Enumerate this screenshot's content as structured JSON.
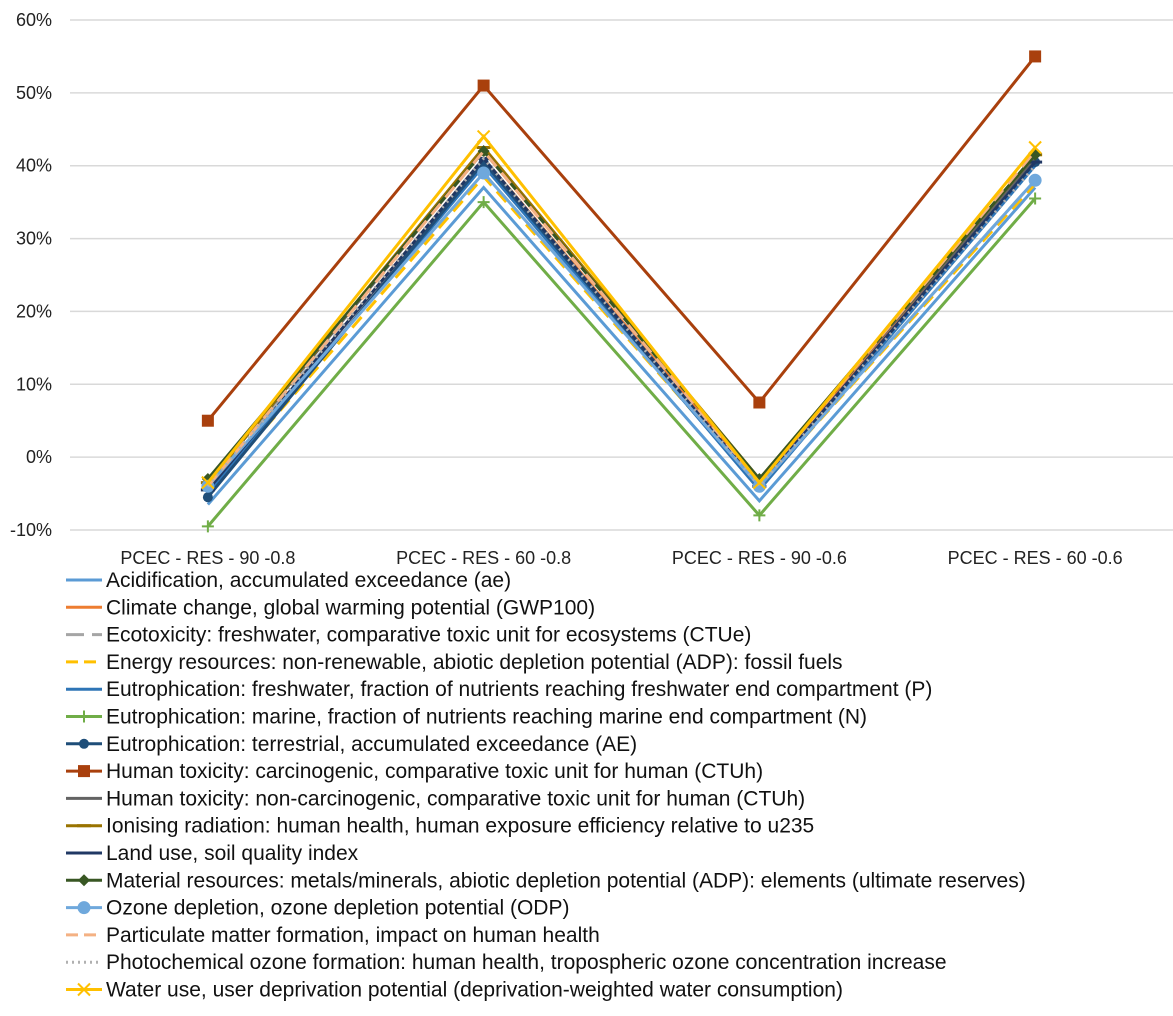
{
  "chart_data": {
    "type": "line",
    "title": "",
    "xlabel": "",
    "ylabel": "",
    "ylim": [
      -10,
      60
    ],
    "yticks": [
      -10,
      0,
      10,
      20,
      30,
      40,
      50,
      60
    ],
    "ytick_labels": [
      "-10%",
      "0%",
      "10%",
      "20%",
      "30%",
      "40%",
      "50%",
      "60%"
    ],
    "grid": "horizontal",
    "legend_position": "bottom",
    "categories": [
      "PCEC - RES - 90 -0.8",
      "PCEC - RES - 60 -0.8",
      "PCEC - RES - 90 -0.6",
      "PCEC - RES - 60 -0.6"
    ],
    "series": [
      {
        "name": "Acidification, accumulated exceedance (ae)",
        "color": "#5B9BD5",
        "dash": "solid",
        "marker": "none",
        "values": [
          -6.5,
          37,
          -6,
          37
        ]
      },
      {
        "name": "Climate change, global warming potential (GWP100)",
        "color": "#ED7D31",
        "dash": "solid",
        "marker": "none",
        "values": [
          -4.5,
          41,
          -3.5,
          41
        ]
      },
      {
        "name": "Ecotoxicity: freshwater, comparative toxic unit for ecosystems (CTUe)",
        "color": "#A5A5A5",
        "dash": "longdash",
        "marker": "none",
        "values": [
          -3.5,
          40,
          -4,
          38
        ]
      },
      {
        "name": "Energy resources: non-renewable, abiotic depletion potential (ADP): fossil fuels",
        "color": "#FFC000",
        "dash": "dash",
        "marker": "none",
        "values": [
          -5,
          38.5,
          -4,
          37.5
        ]
      },
      {
        "name": "Eutrophication: freshwater, fraction of nutrients reaching freshwater end compartment (P)",
        "color": "#2E75B6",
        "dash": "solid",
        "marker": "none",
        "values": [
          -5,
          40,
          -4.5,
          40
        ]
      },
      {
        "name": "Eutrophication: marine, fraction of nutrients reaching marine end compartment (N)",
        "color": "#70AD47",
        "dash": "solid",
        "marker": "plus",
        "values": [
          -9.5,
          35,
          -8,
          35.5
        ]
      },
      {
        "name": "Eutrophication: terrestrial, accumulated exceedance (AE)",
        "color": "#1F4E79",
        "dash": "solid",
        "marker": "circle",
        "values": [
          -5.5,
          40.5,
          -4,
          40.5
        ]
      },
      {
        "name": "Human toxicity: carcinogenic, comparative toxic unit for human (CTUh)",
        "color": "#A9400D",
        "dash": "solid",
        "marker": "square",
        "values": [
          5,
          51,
          7.5,
          55
        ]
      },
      {
        "name": "Human toxicity: non-carcinogenic, comparative toxic unit for human (CTUh)",
        "color": "#636363",
        "dash": "solid",
        "marker": "none",
        "values": [
          -3.5,
          42,
          -3,
          41
        ]
      },
      {
        "name": "Ionising radiation: human health, human exposure efficiency relative to u235",
        "color": "#997300",
        "dash": "solid",
        "marker": "dash",
        "values": [
          -3.5,
          42.5,
          -3,
          41.5
        ]
      },
      {
        "name": "Land use, soil quality index",
        "color": "#203864",
        "dash": "solid",
        "marker": "dash",
        "values": [
          -4.5,
          41,
          -4,
          40.5
        ]
      },
      {
        "name": "Material resources: metals/minerals, abiotic depletion potential (ADP): elements (ultimate reserves)",
        "color": "#385723",
        "dash": "solid",
        "marker": "diamond",
        "values": [
          -3,
          42,
          -3,
          41.5
        ]
      },
      {
        "name": "Ozone depletion, ozone depletion potential (ODP)",
        "color": "#6FA8DC",
        "dash": "solid",
        "marker": "bigcircle",
        "values": [
          -4,
          39,
          -4,
          38
        ]
      },
      {
        "name": "Particulate matter formation, impact on human health",
        "color": "#F4B183",
        "dash": "dash",
        "marker": "none",
        "values": [
          -4,
          42,
          -3.5,
          42
        ]
      },
      {
        "name": "Photochemical ozone formation: human health, tropospheric ozone concentration increase",
        "color": "#B0B0B0",
        "dash": "dot",
        "marker": "none",
        "values": [
          -4,
          41,
          -4,
          40
        ]
      },
      {
        "name": "Water use, user deprivation potential (deprivation-weighted water consumption)",
        "color": "#FFC000",
        "dash": "solid",
        "marker": "x",
        "values": [
          -3.5,
          44,
          -3.5,
          42.5
        ]
      }
    ]
  }
}
